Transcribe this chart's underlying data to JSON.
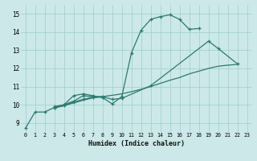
{
  "xlabel": "Humidex (Indice chaleur)",
  "bg_color": "#cce8e8",
  "line_color": "#2d7a6e",
  "xlim": [
    -0.5,
    23.5
  ],
  "ylim": [
    8.5,
    15.5
  ],
  "xticks": [
    0,
    1,
    2,
    3,
    4,
    5,
    6,
    7,
    8,
    9,
    10,
    11,
    12,
    13,
    14,
    15,
    16,
    17,
    18,
    19,
    20,
    21,
    22,
    23
  ],
  "yticks": [
    9,
    10,
    11,
    12,
    13,
    14,
    15
  ],
  "line1_x": [
    0,
    1,
    2,
    3,
    4,
    5,
    6,
    7,
    8,
    9,
    10,
    11,
    12,
    13,
    14,
    15,
    16,
    17,
    18
  ],
  "line1_y": [
    8.7,
    9.6,
    9.6,
    9.85,
    10.0,
    10.5,
    10.6,
    10.5,
    10.4,
    10.05,
    10.45,
    12.85,
    14.1,
    14.7,
    14.85,
    14.95,
    14.7,
    14.15,
    14.2
  ],
  "line2_x": [
    3,
    4,
    5,
    6,
    7,
    8,
    9,
    10,
    11,
    12,
    13,
    14,
    15,
    16,
    17,
    18,
    19,
    20,
    21,
    22
  ],
  "line2_y": [
    9.85,
    9.95,
    10.1,
    10.25,
    10.38,
    10.45,
    10.52,
    10.6,
    10.72,
    10.85,
    11.0,
    11.18,
    11.35,
    11.5,
    11.7,
    11.85,
    12.0,
    12.12,
    12.18,
    12.22
  ],
  "line3_x": [
    3,
    4,
    5,
    6,
    7,
    8,
    9,
    10,
    13,
    19,
    20,
    22
  ],
  "line3_y": [
    9.9,
    10.0,
    10.2,
    10.5,
    10.45,
    10.45,
    10.3,
    10.35,
    11.05,
    13.5,
    13.1,
    12.25
  ],
  "line4_x": [
    3,
    4,
    5,
    6,
    7,
    8
  ],
  "line4_y": [
    9.82,
    9.95,
    10.15,
    10.3,
    10.42,
    10.42
  ]
}
